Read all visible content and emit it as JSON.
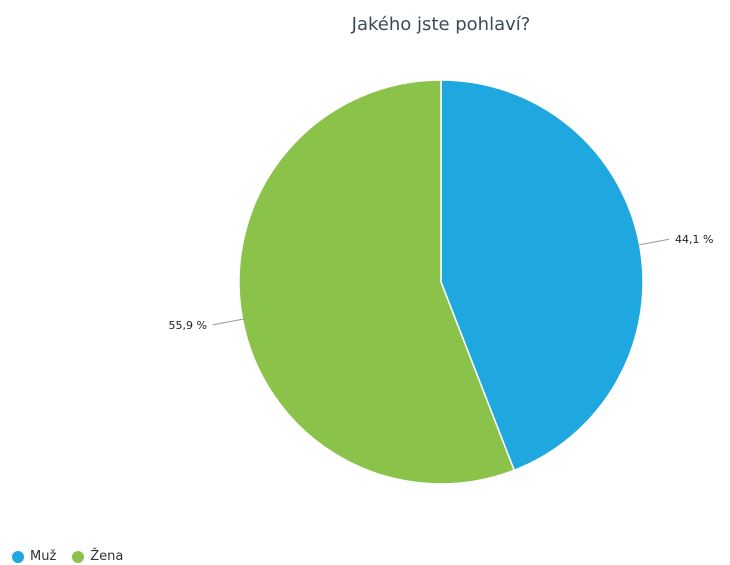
{
  "chart_data": {
    "type": "pie",
    "title": "Jakého jste pohlaví?",
    "series": [
      {
        "name": "Muž",
        "value": 44.1,
        "label": "44,1 %",
        "color": "#1fa8e0"
      },
      {
        "name": "Žena",
        "value": 55.9,
        "label": "55,9 %",
        "color": "#8bc34a"
      }
    ],
    "legend_position": "bottom-left"
  }
}
